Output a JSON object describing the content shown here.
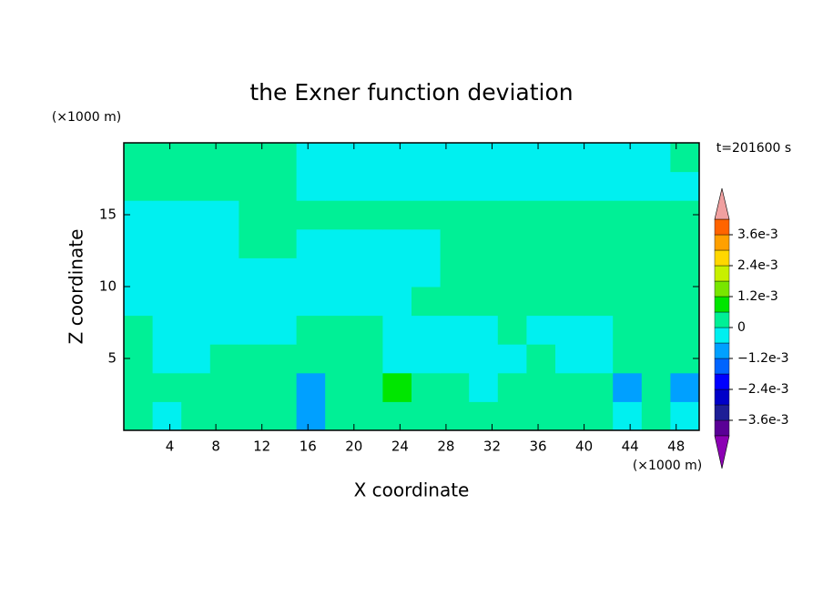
{
  "chart_data": {
    "type": "contour",
    "title": "the Exner function deviation",
    "x_label": "X coordinate",
    "y_label": "Z coordinate",
    "x_unit": "(×1000 m)",
    "y_unit": "(×1000 m)",
    "time_label": "t=201600 s",
    "xlim": [
      0,
      50
    ],
    "ylim": [
      0,
      20
    ],
    "xticks": [
      4,
      8,
      12,
      16,
      20,
      24,
      28,
      32,
      36,
      40,
      44,
      48
    ],
    "yticks": [
      5,
      10,
      15
    ],
    "x": [
      1.25,
      3.75,
      6.25,
      8.75,
      11.25,
      13.75,
      16.25,
      18.75,
      21.25,
      23.75,
      26.25,
      28.75,
      31.25,
      33.75,
      36.25,
      38.75,
      41.25,
      43.75,
      46.25,
      48.75
    ],
    "z": [
      1,
      3,
      5,
      7,
      9,
      11,
      13,
      15,
      17,
      19
    ],
    "values": [
      [
        0.0003,
        -0.0003,
        0.0003,
        0.0003,
        0.0003,
        0.0003,
        -0.0009,
        0.0003,
        0.0003,
        0.0003,
        0.0003,
        0.0003,
        0.0003,
        0.0003,
        0.0003,
        0.0003,
        0.0003,
        -0.0003,
        0.0003,
        -0.0003
      ],
      [
        0.0003,
        0.0003,
        0.0003,
        0.0003,
        0.0003,
        0.0003,
        -0.0009,
        0.0003,
        0.0003,
        0.0009,
        0.0003,
        0.0003,
        -0.0003,
        0.0003,
        0.0003,
        0.0003,
        0.0003,
        -0.0009,
        0.0003,
        -0.0009
      ],
      [
        0.0003,
        -0.0003,
        -0.0003,
        0.0003,
        0.0003,
        0.0003,
        0.0003,
        0.0003,
        0.0003,
        -0.0003,
        -0.0003,
        -0.0003,
        -0.0003,
        -0.0003,
        0.0003,
        -0.0003,
        -0.0003,
        0.0003,
        0.0003,
        0.0003
      ],
      [
        0.0003,
        -0.0003,
        -0.0003,
        -0.0003,
        -0.0003,
        -0.0003,
        0.0003,
        0.0003,
        0.0003,
        -0.0003,
        -0.0003,
        -0.0003,
        -0.0003,
        0.0003,
        -0.0003,
        -0.0003,
        -0.0003,
        0.0003,
        0.0003,
        0.0003
      ],
      [
        -0.0003,
        -0.0003,
        -0.0003,
        -0.0003,
        -0.0003,
        -0.0003,
        -0.0003,
        -0.0003,
        -0.0003,
        -0.0003,
        0.0003,
        0.0003,
        0.0003,
        0.0003,
        0.0003,
        0.0003,
        0.0003,
        0.0003,
        0.0003,
        0.0003
      ],
      [
        -0.0003,
        -0.0003,
        -0.0003,
        -0.0003,
        -0.0003,
        -0.0003,
        -0.0003,
        -0.0003,
        -0.0003,
        -0.0003,
        -0.0003,
        0.0003,
        0.0003,
        0.0003,
        0.0003,
        0.0003,
        0.0003,
        0.0003,
        0.0003,
        0.0003
      ],
      [
        -0.0003,
        -0.0003,
        -0.0003,
        -0.0003,
        0.0003,
        0.0003,
        -0.0003,
        -0.0003,
        -0.0003,
        -0.0003,
        -0.0003,
        0.0003,
        0.0003,
        0.0003,
        0.0003,
        0.0003,
        0.0003,
        0.0003,
        0.0003,
        0.0003
      ],
      [
        -0.0003,
        -0.0003,
        -0.0003,
        -0.0003,
        0.0003,
        0.0003,
        0.0003,
        0.0003,
        0.0003,
        0.0003,
        0.0003,
        0.0003,
        0.0003,
        0.0003,
        0.0003,
        0.0003,
        0.0003,
        0.0003,
        0.0003,
        0.0003
      ],
      [
        0.0003,
        0.0003,
        0.0003,
        0.0003,
        0.0003,
        0.0003,
        -0.0003,
        -0.0003,
        -0.0003,
        -0.0003,
        -0.0003,
        -0.0003,
        -0.0003,
        -0.0003,
        -0.0003,
        -0.0003,
        -0.0003,
        -0.0003,
        -0.0003,
        -0.0003
      ],
      [
        0.0003,
        0.0003,
        0.0003,
        0.0003,
        0.0003,
        0.0003,
        -0.0003,
        -0.0003,
        -0.0003,
        -0.0003,
        -0.0003,
        -0.0003,
        -0.0003,
        -0.0003,
        -0.0003,
        -0.0003,
        -0.0003,
        -0.0003,
        -0.0003,
        0.0003
      ]
    ],
    "levels": [
      -0.0042,
      -0.0036,
      -0.003,
      -0.0024,
      -0.0018,
      -0.0012,
      -0.0006,
      0,
      0.0006,
      0.0012,
      0.0018,
      0.0024,
      0.003,
      0.0036,
      0.0042
    ],
    "colors": [
      "#8c00b4",
      "#5a0096",
      "#1e1e96",
      "#0000c8",
      "#0000ff",
      "#0064ff",
      "#00a0ff",
      "#00f0f0",
      "#00f096",
      "#00e600",
      "#78e600",
      "#c8f000",
      "#ffd700",
      "#ffa000",
      "#ff6400",
      "#ff2828",
      "#f0a0a0"
    ],
    "colorbar_ticks": [
      {
        "value": 0.0036,
        "label": "3.6e-3"
      },
      {
        "value": 0.0024,
        "label": "2.4e-3"
      },
      {
        "value": 0.0012,
        "label": "1.2e-3"
      },
      0,
      {
        "value": -0.0012,
        "label": "−1.2e-3"
      },
      {
        "value": -0.0024,
        "label": "−2.4e-3"
      },
      {
        "value": -0.0036,
        "label": "−3.6e-3"
      }
    ]
  }
}
